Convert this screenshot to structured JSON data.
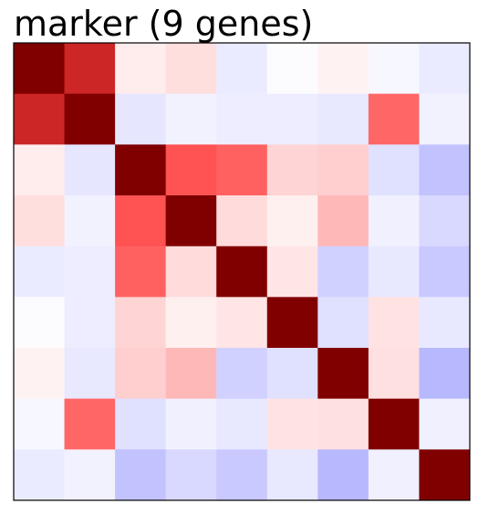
{
  "chart_data": {
    "type": "heatmap",
    "title": "marker (9 genes)",
    "xlabel": "",
    "ylabel": "",
    "rows": 9,
    "cols": 9,
    "colormap": "bwr",
    "vmin": -1,
    "vmax": 1,
    "colorbar": false,
    "values": [
      [
        1.0,
        0.85,
        0.07,
        0.13,
        -0.08,
        -0.01,
        0.05,
        -0.03,
        -0.08
      ],
      [
        0.85,
        1.0,
        -0.1,
        -0.05,
        -0.07,
        -0.07,
        -0.09,
        0.6,
        -0.05
      ],
      [
        0.07,
        -0.1,
        1.0,
        0.68,
        0.62,
        0.17,
        0.19,
        -0.12,
        -0.24
      ],
      [
        0.13,
        -0.05,
        0.68,
        1.0,
        0.14,
        0.06,
        0.28,
        -0.06,
        -0.15
      ],
      [
        -0.08,
        -0.07,
        0.62,
        0.14,
        1.0,
        0.1,
        -0.18,
        -0.09,
        -0.21
      ],
      [
        -0.01,
        -0.07,
        0.17,
        0.06,
        0.1,
        1.0,
        -0.12,
        0.11,
        -0.09
      ],
      [
        0.05,
        -0.09,
        0.19,
        0.28,
        -0.18,
        -0.12,
        1.0,
        0.12,
        -0.28
      ],
      [
        -0.03,
        0.6,
        -0.12,
        -0.06,
        -0.09,
        0.11,
        0.12,
        1.0,
        -0.06
      ],
      [
        -0.08,
        -0.05,
        -0.24,
        -0.15,
        -0.21,
        -0.09,
        -0.28,
        -0.06,
        1.0
      ]
    ]
  }
}
